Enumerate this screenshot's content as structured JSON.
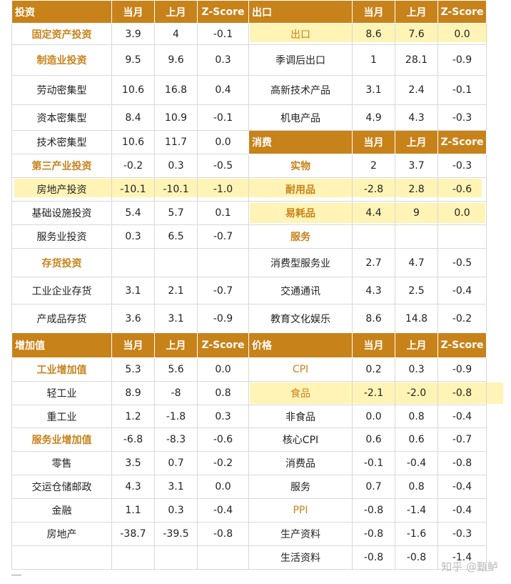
{
  "highlight_color": "#ffeb78",
  "header_color": "#c8821a",
  "category_color": "#c8821a",
  "watermark": "知乎 @甄鲈",
  "col_headers": [
    "当月",
    "上月",
    "Z-Score"
  ],
  "investment": {
    "title": "投资",
    "rows": [
      {
        "label": "固定资产投资",
        "cur": "3.9",
        "prev": "4",
        "z": "-0.1"
      },
      {
        "label": "制造业投资",
        "cur": "9.5",
        "prev": "9.6",
        "z": "0.3"
      },
      {
        "label": "劳动密集型",
        "cur": "10.6",
        "prev": "16.8",
        "z": "0.4"
      },
      {
        "label": "资本密集型",
        "cur": "8.4",
        "prev": "10.9",
        "z": "-0.1"
      },
      {
        "label": "技术密集型",
        "cur": "10.6",
        "prev": "11.7",
        "z": "0.0"
      },
      {
        "label": "第三产业投资",
        "cur": "-0.2",
        "prev": "0.3",
        "z": "-0.5"
      },
      {
        "label": "房地产投资",
        "cur": "-10.1",
        "prev": "-10.1",
        "z": "-1.0"
      },
      {
        "label": "基础设施投资",
        "cur": "5.4",
        "prev": "5.7",
        "z": "0.1"
      },
      {
        "label": "服务业投资",
        "cur": "0.3",
        "prev": "6.5",
        "z": "-0.7"
      },
      {
        "label": "存货投资",
        "cur": "",
        "prev": "",
        "z": ""
      },
      {
        "label": "工业企业存货",
        "cur": "3.1",
        "prev": "2.1",
        "z": "-0.7"
      },
      {
        "label": "产成品存货",
        "cur": "3.6",
        "prev": "3.1",
        "z": "-0.9"
      }
    ]
  },
  "exports": {
    "title": "出口",
    "rows": [
      {
        "label": "出口",
        "cur": "8.6",
        "prev": "7.6",
        "z": "0.0"
      },
      {
        "label": "季调后出口",
        "cur": "1",
        "prev": "28.1",
        "z": "-0.9"
      },
      {
        "label": "高新技术产品",
        "cur": "3.1",
        "prev": "2.4",
        "z": "-0.1"
      },
      {
        "label": "机电产品",
        "cur": "4.9",
        "prev": "4.3",
        "z": "-0.3"
      }
    ]
  },
  "consumption": {
    "title": "消费",
    "rows": [
      {
        "label": "实物",
        "cur": "2",
        "prev": "3.7",
        "z": "-0.3"
      },
      {
        "label": "耐用品",
        "cur": "-2.8",
        "prev": "2.8",
        "z": "-0.6"
      },
      {
        "label": "易耗品",
        "cur": "4.4",
        "prev": "9",
        "z": "0.0"
      },
      {
        "label": "服务",
        "cur": "",
        "prev": "",
        "z": ""
      },
      {
        "label": "消费型服务业",
        "cur": "2.7",
        "prev": "4.7",
        "z": "-0.5"
      },
      {
        "label": "交通通讯",
        "cur": "4.3",
        "prev": "2.5",
        "z": "-0.4"
      },
      {
        "label": "教育文化娱乐",
        "cur": "8.6",
        "prev": "14.8",
        "z": "-0.2"
      }
    ]
  },
  "value_added": {
    "title": "增加值",
    "rows": [
      {
        "label": "工业增加值",
        "cur": "5.3",
        "prev": "5.6",
        "z": "0.0"
      },
      {
        "label": "轻工业",
        "cur": "8.9",
        "prev": "-8",
        "z": "0.8"
      },
      {
        "label": "重工业",
        "cur": "1.2",
        "prev": "-1.8",
        "z": "0.3"
      },
      {
        "label": "服务业增加值",
        "cur": "-6.8",
        "prev": "-8.3",
        "z": "-0.6"
      },
      {
        "label": "零售",
        "cur": "3.5",
        "prev": "0.7",
        "z": "-0.2"
      },
      {
        "label": "交运仓储邮政",
        "cur": "4.3",
        "prev": "3.1",
        "z": "0.0"
      },
      {
        "label": "金融",
        "cur": "1.1",
        "prev": "0.3",
        "z": "-0.4"
      },
      {
        "label": "房地产",
        "cur": "-38.7",
        "prev": "-39.5",
        "z": "-0.8"
      },
      {
        "label": "",
        "cur": "",
        "prev": "",
        "z": ""
      }
    ]
  },
  "prices": {
    "title": "价格",
    "rows": [
      {
        "label": "CPI",
        "cur": "0.2",
        "prev": "0.3",
        "z": "-0.9"
      },
      {
        "label": "食品",
        "cur": "-2.1",
        "prev": "-2.0",
        "z": "-0.8"
      },
      {
        "label": "非食品",
        "cur": "0.0",
        "prev": "0.8",
        "z": "-0.4"
      },
      {
        "label": "核心CPI",
        "cur": "0.6",
        "prev": "0.6",
        "z": "-0.7"
      },
      {
        "label": "消费品",
        "cur": "-0.1",
        "prev": "-0.4",
        "z": "-0.8"
      },
      {
        "label": "服务",
        "cur": "0.7",
        "prev": "0.8",
        "z": "-0.4"
      },
      {
        "label": "PPI",
        "cur": "-0.8",
        "prev": "-1.4",
        "z": "-0.4"
      },
      {
        "label": "生产资料",
        "cur": "-0.8",
        "prev": "-1.6",
        "z": "-0.3"
      },
      {
        "label": "生活资料",
        "cur": "-0.8",
        "prev": "-0.8",
        "z": "-1.4"
      }
    ]
  }
}
